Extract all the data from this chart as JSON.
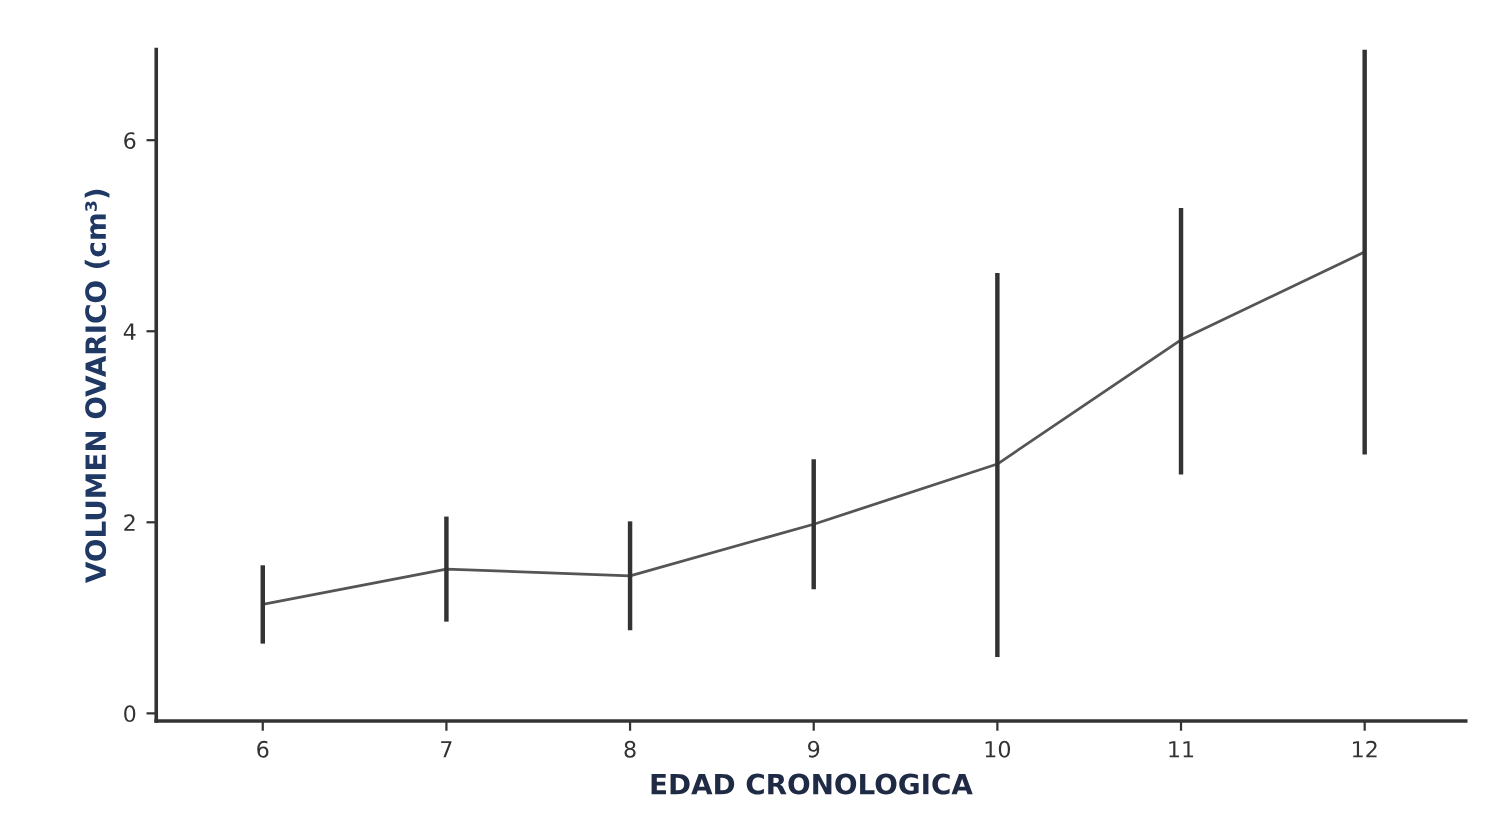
{
  "chart_data": {
    "type": "line",
    "xlabel": "EDAD CRONOLOGICA",
    "ylabel": "VOLUMEN OVARICO (cm³)",
    "x": [
      6,
      7,
      8,
      9,
      10,
      11,
      12
    ],
    "series": [
      {
        "color": "#555555",
        "values": [
          1.14,
          1.51,
          1.44,
          1.98,
          2.61,
          3.91,
          4.83
        ],
        "errors": [
          [
            0.73,
            1.55
          ],
          [
            0.96,
            2.06
          ],
          [
            0.87,
            2.01
          ],
          [
            1.3,
            2.66
          ],
          [
            0.59,
            4.61
          ],
          [
            2.5,
            5.29
          ],
          [
            2.71,
            6.95
          ]
        ]
      }
    ],
    "xlim": [
      5.42,
      12.55
    ],
    "ylim": [
      -0.08,
      6.95
    ],
    "xticks": [
      6,
      7,
      8,
      9,
      10,
      11,
      12
    ],
    "yticks": [
      0,
      2,
      4,
      6
    ],
    "grid": false,
    "legend": false,
    "marker": "none",
    "line_style": "solid"
  }
}
